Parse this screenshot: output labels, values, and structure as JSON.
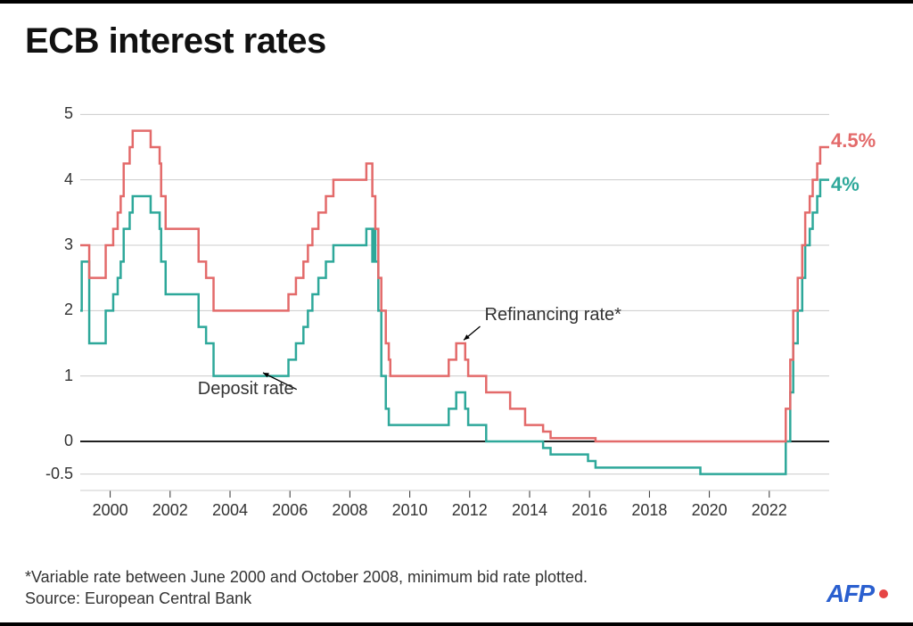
{
  "title": "ECB interest rates",
  "footnote": "*Variable rate between June 2000 and October 2008, minimum bid rate plotted.",
  "source": "Source: European Central Bank",
  "brand": "AFP",
  "chart": {
    "type": "step-line",
    "background_color": "#ffffff",
    "grid_color": "#cccccc",
    "axis_color": "#333333",
    "zero_line_color": "#000000",
    "title_fontsize": 40,
    "label_fontsize": 18,
    "line_width": 2.5,
    "x_domain_year": [
      1999,
      2024
    ],
    "y_domain": [
      -0.75,
      5.25
    ],
    "y_ticks": [
      -0.5,
      0,
      1,
      2,
      3,
      4,
      5
    ],
    "x_ticks": [
      2000,
      2002,
      2004,
      2006,
      2008,
      2010,
      2012,
      2014,
      2016,
      2018,
      2020,
      2022
    ],
    "annotations": {
      "deposit": {
        "label": "Deposit rate",
        "x_year": 2003.1,
        "y_val": 0.85,
        "arrow_to_x": 2005.1,
        "arrow_to_y": 1.05
      },
      "refinancing": {
        "label": "Refinancing rate*",
        "x_year": 2012.2,
        "y_val": 1.95,
        "arrow_to_x": 2011.8,
        "arrow_to_y": 1.55
      }
    },
    "end_labels": {
      "refinancing": {
        "text": "4.5%",
        "value": 4.5,
        "color": "#e36a6a"
      },
      "deposit": {
        "text": "4%",
        "value": 4.0,
        "color": "#2ea89a"
      }
    },
    "series": {
      "refinancing": {
        "color": "#e36a6a",
        "points": [
          [
            1999.0,
            3.0
          ],
          [
            1999.3,
            2.5
          ],
          [
            1999.85,
            3.0
          ],
          [
            2000.1,
            3.25
          ],
          [
            2000.25,
            3.5
          ],
          [
            2000.35,
            3.75
          ],
          [
            2000.45,
            4.25
          ],
          [
            2000.65,
            4.5
          ],
          [
            2000.75,
            4.75
          ],
          [
            2001.35,
            4.5
          ],
          [
            2001.65,
            4.25
          ],
          [
            2001.7,
            3.75
          ],
          [
            2001.85,
            3.25
          ],
          [
            2002.95,
            2.75
          ],
          [
            2003.2,
            2.5
          ],
          [
            2003.45,
            2.0
          ],
          [
            2005.95,
            2.25
          ],
          [
            2006.2,
            2.5
          ],
          [
            2006.45,
            2.75
          ],
          [
            2006.6,
            3.0
          ],
          [
            2006.75,
            3.25
          ],
          [
            2006.95,
            3.5
          ],
          [
            2007.2,
            3.75
          ],
          [
            2007.45,
            4.0
          ],
          [
            2008.55,
            4.25
          ],
          [
            2008.75,
            3.75
          ],
          [
            2008.85,
            3.25
          ],
          [
            2008.95,
            2.5
          ],
          [
            2009.05,
            2.0
          ],
          [
            2009.2,
            1.5
          ],
          [
            2009.3,
            1.25
          ],
          [
            2009.35,
            1.0
          ],
          [
            2011.3,
            1.25
          ],
          [
            2011.55,
            1.5
          ],
          [
            2011.85,
            1.25
          ],
          [
            2011.95,
            1.0
          ],
          [
            2012.55,
            0.75
          ],
          [
            2013.35,
            0.5
          ],
          [
            2013.85,
            0.25
          ],
          [
            2014.45,
            0.15
          ],
          [
            2014.7,
            0.05
          ],
          [
            2016.2,
            0.0
          ],
          [
            2022.55,
            0.5
          ],
          [
            2022.7,
            1.25
          ],
          [
            2022.8,
            2.0
          ],
          [
            2022.95,
            2.5
          ],
          [
            2023.1,
            3.0
          ],
          [
            2023.2,
            3.5
          ],
          [
            2023.35,
            3.75
          ],
          [
            2023.45,
            4.0
          ],
          [
            2023.6,
            4.25
          ],
          [
            2023.7,
            4.5
          ],
          [
            2024.0,
            4.5
          ]
        ]
      },
      "deposit": {
        "color": "#2ea89a",
        "points": [
          [
            1999.0,
            2.0
          ],
          [
            1999.05,
            2.75
          ],
          [
            1999.3,
            1.5
          ],
          [
            1999.85,
            2.0
          ],
          [
            2000.1,
            2.25
          ],
          [
            2000.25,
            2.5
          ],
          [
            2000.35,
            2.75
          ],
          [
            2000.45,
            3.25
          ],
          [
            2000.65,
            3.5
          ],
          [
            2000.75,
            3.75
          ],
          [
            2001.35,
            3.5
          ],
          [
            2001.65,
            3.25
          ],
          [
            2001.7,
            2.75
          ],
          [
            2001.85,
            2.25
          ],
          [
            2002.95,
            1.75
          ],
          [
            2003.2,
            1.5
          ],
          [
            2003.45,
            1.0
          ],
          [
            2005.95,
            1.25
          ],
          [
            2006.2,
            1.5
          ],
          [
            2006.45,
            1.75
          ],
          [
            2006.6,
            2.0
          ],
          [
            2006.75,
            2.25
          ],
          [
            2006.95,
            2.5
          ],
          [
            2007.2,
            2.75
          ],
          [
            2007.45,
            3.0
          ],
          [
            2008.55,
            3.25
          ],
          [
            2008.75,
            2.75
          ],
          [
            2008.8,
            3.25
          ],
          [
            2008.85,
            2.75
          ],
          [
            2008.95,
            2.0
          ],
          [
            2009.05,
            1.0
          ],
          [
            2009.2,
            0.5
          ],
          [
            2009.3,
            0.25
          ],
          [
            2011.3,
            0.5
          ],
          [
            2011.55,
            0.75
          ],
          [
            2011.85,
            0.5
          ],
          [
            2011.95,
            0.25
          ],
          [
            2012.55,
            0.0
          ],
          [
            2013.35,
            0.0
          ],
          [
            2014.45,
            -0.1
          ],
          [
            2014.7,
            -0.2
          ],
          [
            2015.95,
            -0.3
          ],
          [
            2016.2,
            -0.4
          ],
          [
            2019.7,
            -0.5
          ],
          [
            2022.55,
            0.0
          ],
          [
            2022.7,
            0.75
          ],
          [
            2022.8,
            1.5
          ],
          [
            2022.95,
            2.0
          ],
          [
            2023.1,
            2.5
          ],
          [
            2023.2,
            3.0
          ],
          [
            2023.35,
            3.25
          ],
          [
            2023.45,
            3.5
          ],
          [
            2023.6,
            3.75
          ],
          [
            2023.7,
            4.0
          ],
          [
            2024.0,
            4.0
          ]
        ]
      }
    }
  }
}
